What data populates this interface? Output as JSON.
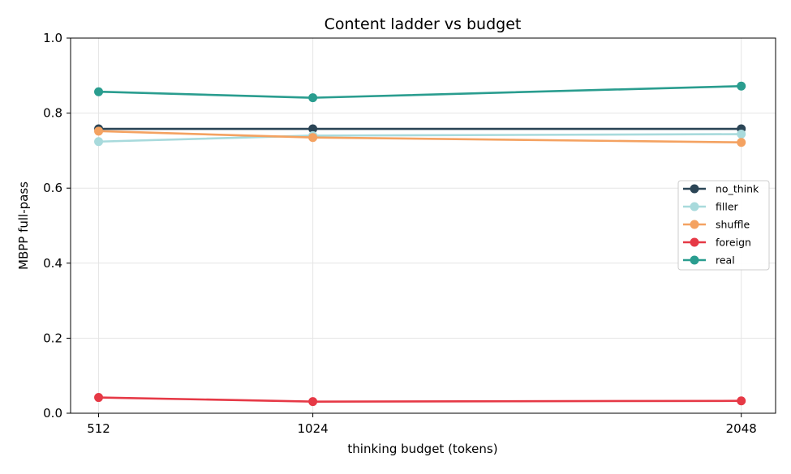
{
  "chart_data": {
    "type": "line",
    "title": "Content ladder vs budget",
    "xlabel": "thinking budget (tokens)",
    "ylabel": "MBPP full-pass",
    "x": [
      512,
      1024,
      2048
    ],
    "x_tick_labels": [
      "512",
      "1024",
      "2048"
    ],
    "xlim": [
      445,
      2130
    ],
    "ylim": [
      0.0,
      1.0
    ],
    "y_ticks": [
      0.0,
      0.2,
      0.4,
      0.6,
      0.8,
      1.0
    ],
    "y_tick_labels": [
      "0.0",
      "0.2",
      "0.4",
      "0.6",
      "0.8",
      "1.0"
    ],
    "grid": true,
    "legend_position": "center-right",
    "series": [
      {
        "name": "no_think",
        "color": "#2b4556",
        "values": [
          0.758,
          0.758,
          0.758
        ]
      },
      {
        "name": "filler",
        "color": "#a8dadc",
        "values": [
          0.724,
          0.74,
          0.744
        ]
      },
      {
        "name": "shuffle",
        "color": "#f4a261",
        "values": [
          0.752,
          0.735,
          0.722
        ]
      },
      {
        "name": "foreign",
        "color": "#e63946",
        "values": [
          0.042,
          0.031,
          0.033
        ]
      },
      {
        "name": "real",
        "color": "#2a9d8f",
        "values": [
          0.857,
          0.841,
          0.872
        ]
      }
    ]
  }
}
